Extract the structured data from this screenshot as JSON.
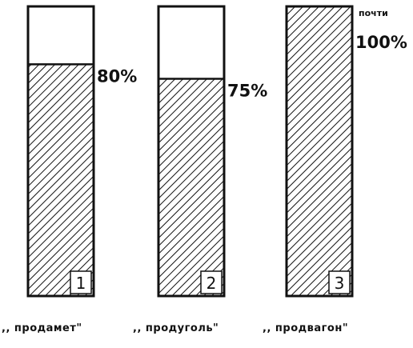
{
  "chart_data": {
    "type": "bar",
    "title": "",
    "xlabel": "",
    "ylabel": "",
    "ylim": [
      0,
      100
    ],
    "grid": false,
    "categories": [
      ",, продамет\"",
      ",, продуголь\"",
      ",, продвагон\""
    ],
    "numbers": [
      "1",
      "2",
      "3"
    ],
    "values": [
      80,
      75,
      100
    ],
    "value_labels": [
      "80%",
      "75%",
      "100%"
    ],
    "value_notes": [
      "",
      "",
      "почти"
    ],
    "colors": {
      "ink": "#111111",
      "paper": "#ffffff"
    }
  }
}
